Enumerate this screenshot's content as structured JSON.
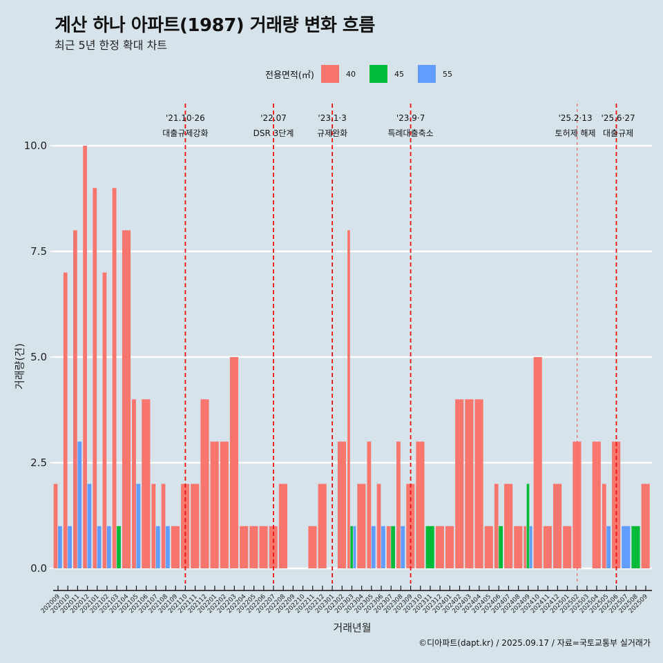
{
  "title": "계산 하나 아파트(1987) 거래량 변화 흐름",
  "subtitle": "최근 5년 한정 확대 차트",
  "caption": "©디아파트(dapt.kr) / 2025.09.17 / 자료=국토교통부 실거래가",
  "chart_data": {
    "type": "bar",
    "stacked": false,
    "grouped": true,
    "title": "계산 하나 아파트(1987) 거래량 변화 흐름",
    "subtitle": "최근 5년 한정 확대 차트",
    "xlabel": "거래년월",
    "ylabel": "거래량(건)",
    "ylim": [
      0,
      10
    ],
    "yticks": [
      "0.0",
      "2.5",
      "5.0",
      "7.5",
      "10.0"
    ],
    "ytick_values": [
      0,
      2.5,
      5,
      7.5,
      10
    ],
    "grid": true,
    "legend": {
      "title": "전용면적(㎡)",
      "placement": "top-center",
      "entries": [
        {
          "name": "40",
          "color": "#F8766D"
        },
        {
          "name": "45",
          "color": "#00BA38"
        },
        {
          "name": "55",
          "color": "#619CFF"
        }
      ]
    },
    "categories": [
      "202009",
      "202010",
      "202011",
      "202012",
      "202101",
      "202102",
      "202103",
      "202104",
      "202105",
      "202106",
      "202107",
      "202108",
      "202109",
      "202110",
      "202111",
      "202112",
      "202201",
      "202202",
      "202203",
      "202204",
      "202205",
      "202206",
      "202207",
      "202208",
      "202209",
      "202210",
      "202211",
      "202212",
      "202301",
      "202302",
      "202303",
      "202304",
      "202305",
      "202306",
      "202307",
      "202308",
      "202309",
      "202310",
      "202311",
      "202312",
      "202401",
      "202402",
      "202403",
      "202404",
      "202405",
      "202406",
      "202407",
      "202408",
      "202409",
      "202410",
      "202411",
      "202412",
      "202501",
      "202502",
      "202503",
      "202504",
      "202505",
      "202506",
      "202507",
      "202508",
      "202509"
    ],
    "series": [
      {
        "name": "40",
        "color": "#F8766D",
        "values": [
          2,
          7,
          8,
          10,
          9,
          7,
          9,
          8,
          4,
          4,
          2,
          2,
          1,
          2,
          2,
          4,
          3,
          3,
          5,
          1,
          1,
          1,
          1,
          2,
          0,
          0,
          1,
          2,
          0,
          3,
          8,
          2,
          3,
          2,
          1,
          3,
          2,
          3,
          0,
          1,
          1,
          4,
          4,
          4,
          1,
          2,
          2,
          1,
          1,
          5,
          1,
          2,
          1,
          3,
          0,
          3,
          2,
          3,
          0,
          0,
          2
        ]
      },
      {
        "name": "45",
        "color": "#00BA38",
        "values": [
          0,
          0,
          0,
          0,
          0,
          0,
          1,
          0,
          0,
          0,
          0,
          0,
          0,
          0,
          0,
          0,
          0,
          0,
          0,
          0,
          0,
          0,
          0,
          0,
          0,
          0,
          0,
          0,
          0,
          0,
          1,
          0,
          0,
          0,
          1,
          0,
          0,
          0,
          1,
          0,
          0,
          0,
          0,
          0,
          0,
          1,
          0,
          0,
          2,
          0,
          0,
          0,
          0,
          0,
          0,
          0,
          0,
          0,
          0,
          1,
          0
        ]
      },
      {
        "name": "55",
        "color": "#619CFF",
        "values": [
          1,
          1,
          3,
          2,
          1,
          1,
          0,
          0,
          2,
          0,
          1,
          1,
          0,
          0,
          0,
          0,
          0,
          0,
          0,
          0,
          0,
          0,
          0,
          0,
          0,
          0,
          0,
          0,
          0,
          0,
          1,
          0,
          1,
          1,
          0,
          1,
          0,
          0,
          0,
          0,
          0,
          0,
          0,
          0,
          0,
          0,
          0,
          0,
          1,
          0,
          0,
          0,
          0,
          0,
          0,
          0,
          1,
          0,
          1,
          0,
          0
        ]
      }
    ],
    "annotations": [
      {
        "x": "202110",
        "date": "'21.10·26",
        "label": "대출규제강화",
        "style": "dashed"
      },
      {
        "x": "202207",
        "date": "'22.07",
        "label": "DSR 3단계",
        "style": "dashed"
      },
      {
        "x": "202301",
        "date": "'23.1·3",
        "label": "규제완화",
        "style": "dashed"
      },
      {
        "x": "202309",
        "date": "'23.9·7",
        "label": "특례대출축소",
        "style": "dashed"
      },
      {
        "x": "202502",
        "date": "'25.2·13",
        "label": "토허제 해제",
        "style": "light-dashed"
      },
      {
        "x": "202506",
        "date": "'25.6·27",
        "label": "대출규제",
        "style": "dashed"
      }
    ]
  }
}
